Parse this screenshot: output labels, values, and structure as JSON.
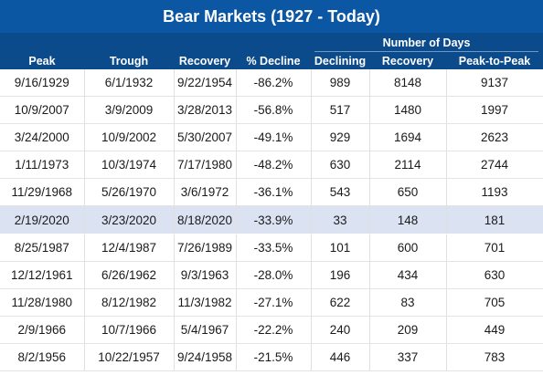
{
  "title": "Bear Markets (1927 - Today)",
  "group_label": "Number of Days",
  "columns": [
    "Peak",
    "Trough",
    "Recovery",
    "% Decline",
    "Declining",
    "Recovery",
    "Peak-to-Peak"
  ],
  "rows": [
    [
      "9/16/1929",
      "6/1/1932",
      "9/22/1954",
      "-86.2%",
      "989",
      "8148",
      "9137"
    ],
    [
      "10/9/2007",
      "3/9/2009",
      "3/28/2013",
      "-56.8%",
      "517",
      "1480",
      "1997"
    ],
    [
      "3/24/2000",
      "10/9/2002",
      "5/30/2007",
      "-49.1%",
      "929",
      "1694",
      "2623"
    ],
    [
      "1/11/1973",
      "10/3/1974",
      "7/17/1980",
      "-48.2%",
      "630",
      "2114",
      "2744"
    ],
    [
      "11/29/1968",
      "5/26/1970",
      "3/6/1972",
      "-36.1%",
      "543",
      "650",
      "1193"
    ],
    [
      "2/19/2020",
      "3/23/2020",
      "8/18/2020",
      "-33.9%",
      "33",
      "148",
      "181"
    ],
    [
      "8/25/1987",
      "12/4/1987",
      "7/26/1989",
      "-33.5%",
      "101",
      "600",
      "701"
    ],
    [
      "12/12/1961",
      "6/26/1962",
      "9/3/1963",
      "-28.0%",
      "196",
      "434",
      "630"
    ],
    [
      "11/28/1980",
      "8/12/1982",
      "11/3/1982",
      "-27.1%",
      "622",
      "83",
      "705"
    ],
    [
      "2/9/1966",
      "10/7/1966",
      "5/4/1967",
      "-22.2%",
      "240",
      "209",
      "449"
    ],
    [
      "8/2/1956",
      "10/22/1957",
      "9/24/1958",
      "-21.5%",
      "446",
      "337",
      "783"
    ]
  ],
  "highlighted_row": 5,
  "colors": {
    "title_bg": "#0b57a3",
    "header_bg": "#0b4a8b",
    "highlight_bg": "#dbe3f3"
  }
}
